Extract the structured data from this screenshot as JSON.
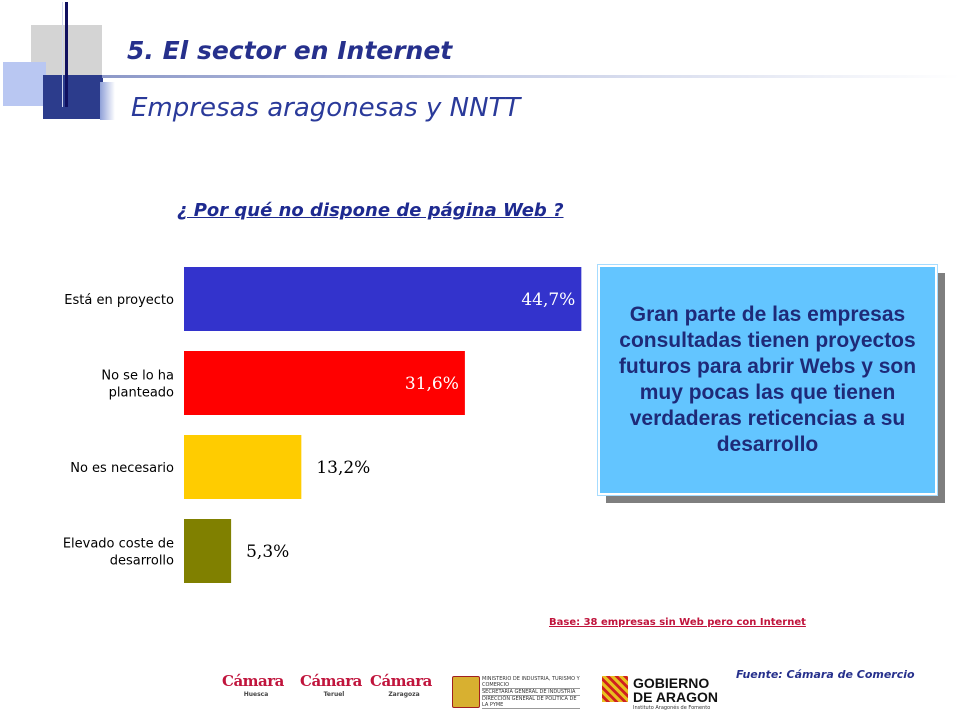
{
  "header": {
    "title": "5. El sector en Internet",
    "subtitle": "Empresas aragonesas y NNTT"
  },
  "chart_data": {
    "type": "bar",
    "orientation": "horizontal",
    "title": "¿ Por qué no dispone de página Web ?",
    "categories": [
      "Está en proyecto",
      "No se lo ha planteado",
      "No es necesario",
      "Elevado coste de desarrollo"
    ],
    "category_lines": [
      [
        "Está en proyecto"
      ],
      [
        "No se lo ha",
        "planteado"
      ],
      [
        "No es necesario"
      ],
      [
        "Elevado coste de",
        "desarrollo"
      ]
    ],
    "values": [
      44.7,
      31.6,
      13.2,
      5.3
    ],
    "value_labels": [
      "44,7%",
      "31,6%",
      "13,2%",
      "5,3%"
    ],
    "colors": [
      "#3333cc",
      "#ff0000",
      "#ffcc00",
      "#808000"
    ],
    "xlim": [
      0,
      45
    ],
    "grid": false,
    "legend": "none"
  },
  "callout": {
    "text": "Gran parte de las empresas consultadas tienen proyectos futuros para abrir Webs y son muy pocas las que tienen verdaderas reticencias a su desarrollo"
  },
  "base_note": "Base: 38 empresas sin Web pero con Internet",
  "source": "Fuente: Cámara de Comercio",
  "logos": {
    "camara_name": "Cámara",
    "cities": [
      "Huesca",
      "Teruel",
      "Zaragoza"
    ],
    "ministerio_lines": [
      "MINISTERIO DE INDUSTRIA, TURISMO Y COMERCIO",
      "SECRETARÍA GENERAL DE INDUSTRIA",
      "DIRECCIÓN GENERAL DE POLÍTICA DE LA PYME"
    ],
    "gobierno_lines": [
      "GOBIERNO",
      "DE ARAGON"
    ],
    "gobierno_sub": "Instituto Aragonés de Fomento"
  }
}
